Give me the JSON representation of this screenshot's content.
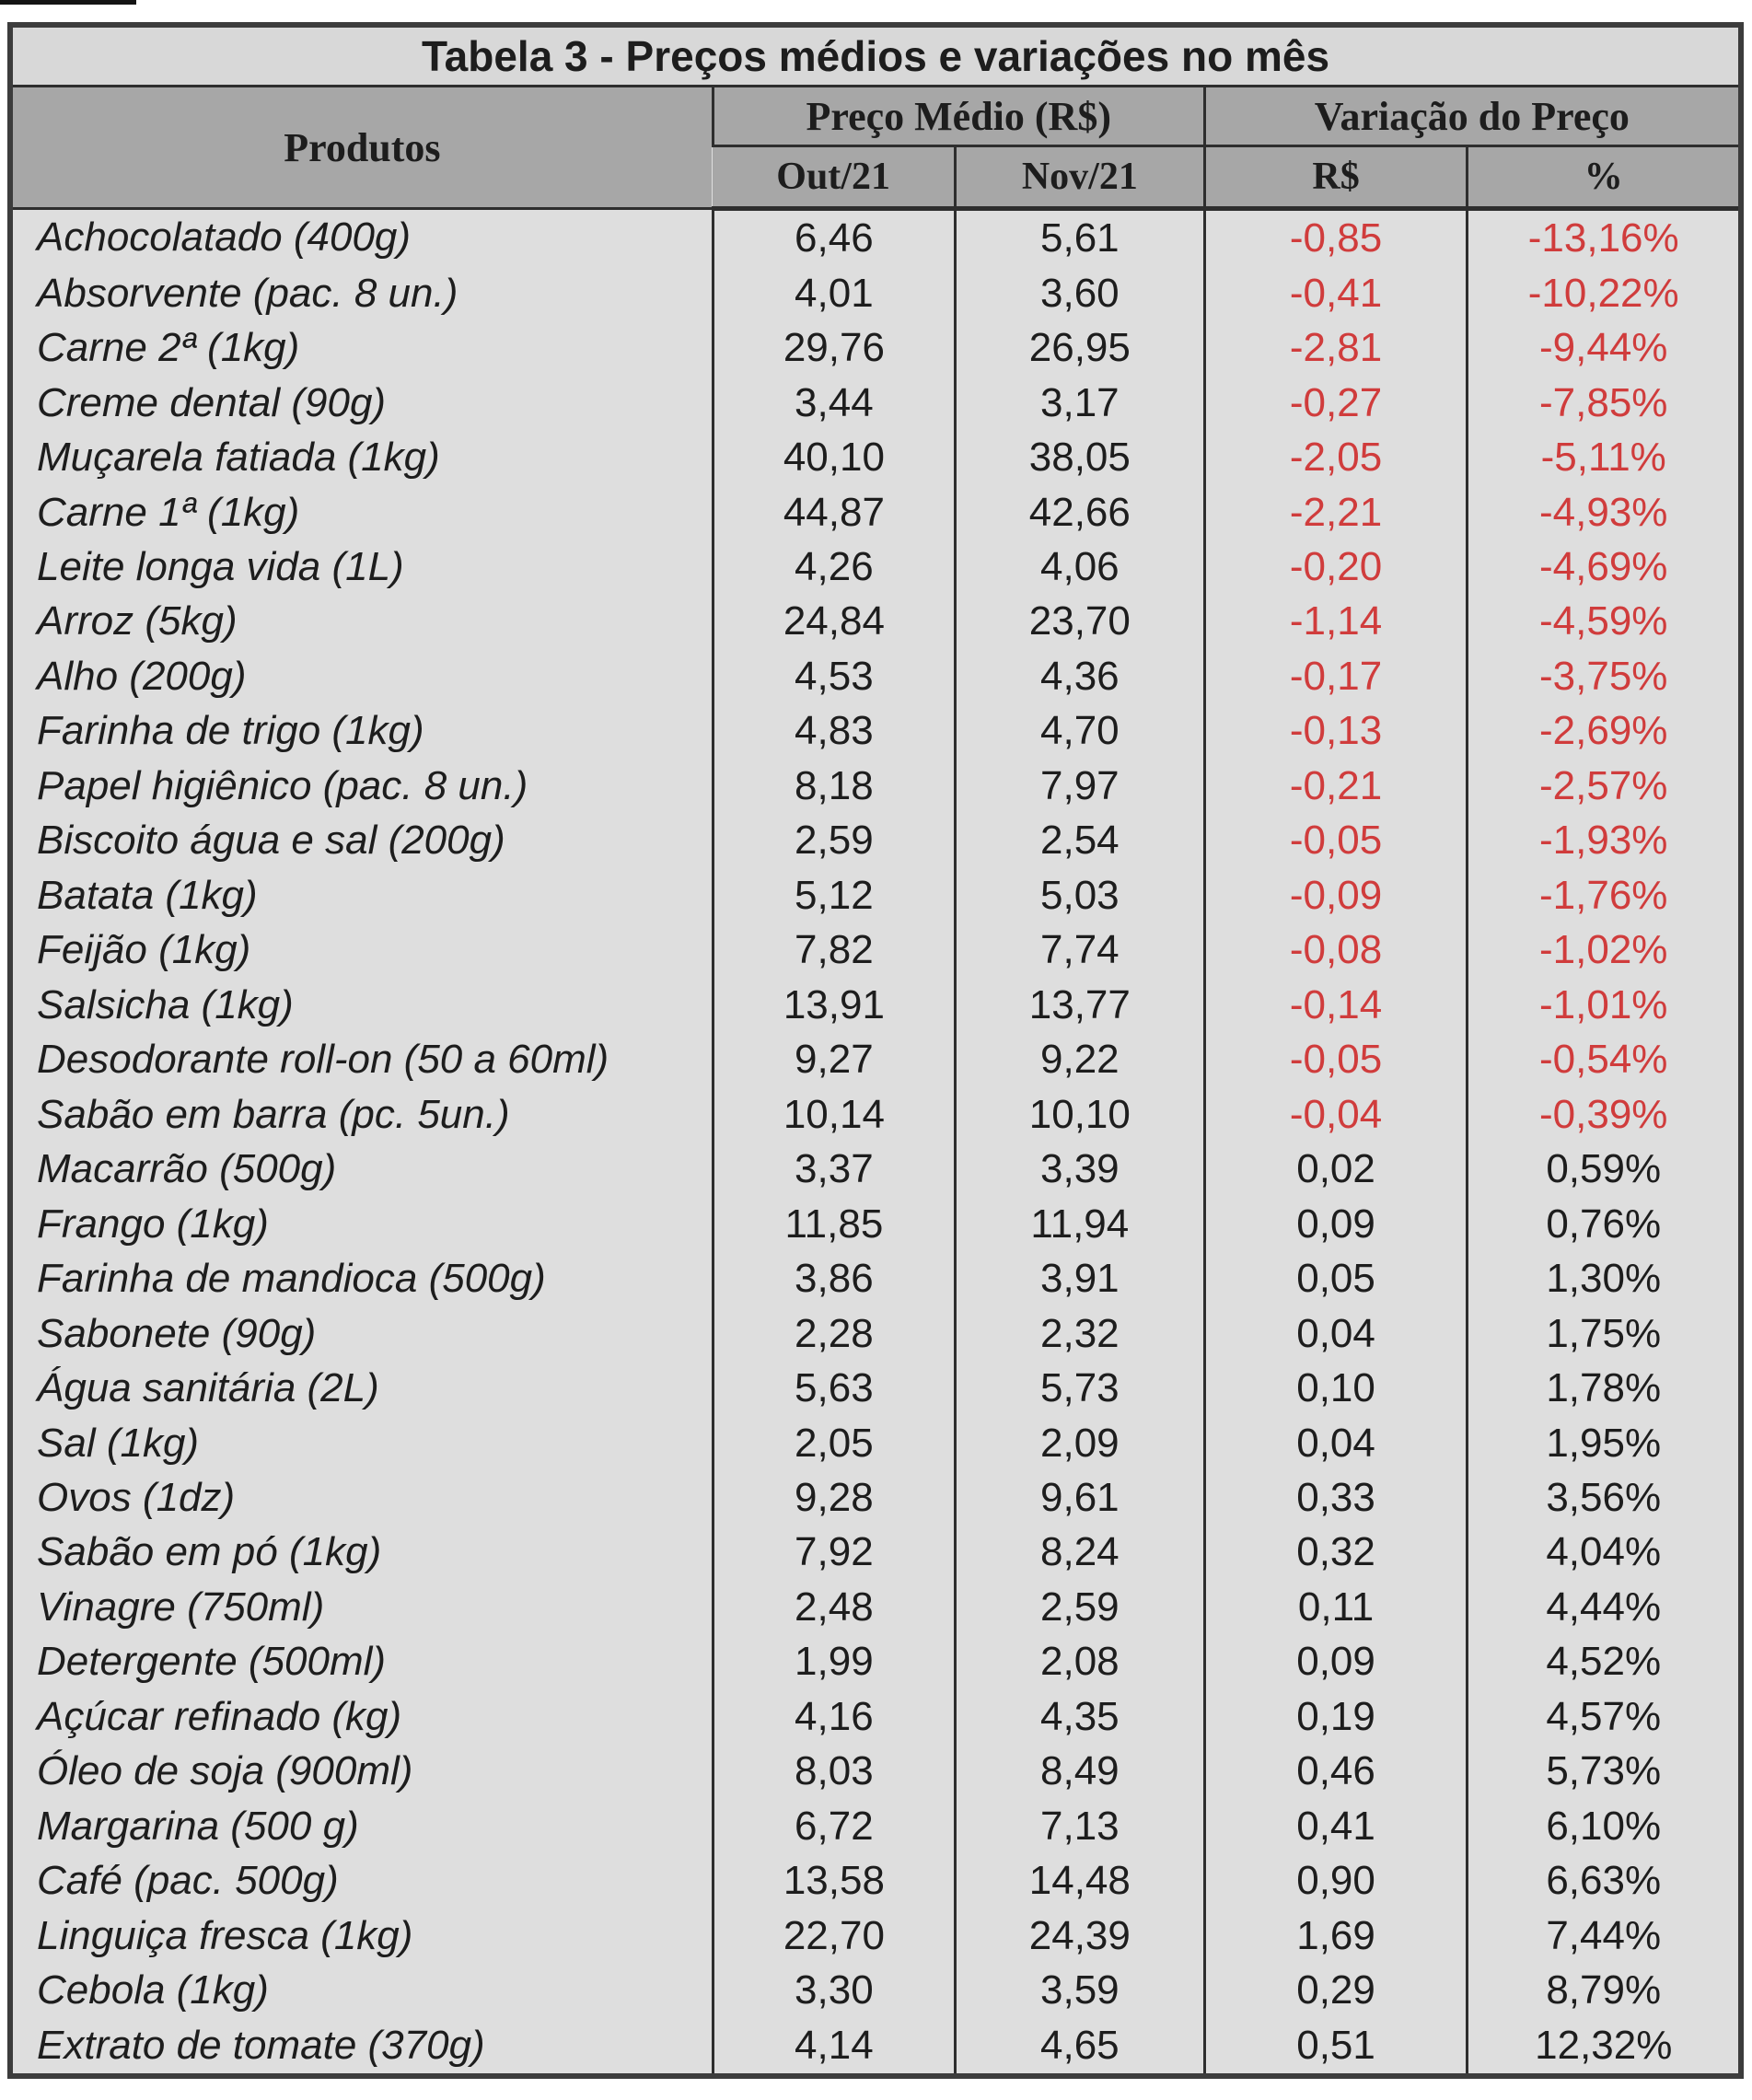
{
  "title": "Tabela 3 - Preços médios e variações no mês",
  "columns": {
    "produtos": "Produtos",
    "preco_medio": "Preço Médio (R$)",
    "variacao": "Variação do Preço",
    "out": "Out/21",
    "nov": "Nov/21",
    "rs": "R$",
    "pct": "%"
  },
  "colors": {
    "negative": "#d03c3c",
    "text": "#1d1d1d",
    "header_bg": "#a7a7a7",
    "title_bg": "#d8d8d8",
    "body_bg": "#dedede",
    "border": "#2e2e2e",
    "outer_border": "#3c3c3c"
  },
  "rows": [
    {
      "product": "Achocolatado (400g)",
      "out": "6,46",
      "nov": "5,61",
      "var_rs": "-0,85",
      "var_pct": "-13,16%"
    },
    {
      "product": "Absorvente (pac. 8 un.)",
      "out": "4,01",
      "nov": "3,60",
      "var_rs": "-0,41",
      "var_pct": "-10,22%"
    },
    {
      "product": "Carne 2ª (1kg)",
      "out": "29,76",
      "nov": "26,95",
      "var_rs": "-2,81",
      "var_pct": "-9,44%"
    },
    {
      "product": "Creme dental (90g)",
      "out": "3,44",
      "nov": "3,17",
      "var_rs": "-0,27",
      "var_pct": "-7,85%"
    },
    {
      "product": "Muçarela fatiada (1kg)",
      "out": "40,10",
      "nov": "38,05",
      "var_rs": "-2,05",
      "var_pct": "-5,11%"
    },
    {
      "product": "Carne 1ª (1kg)",
      "out": "44,87",
      "nov": "42,66",
      "var_rs": "-2,21",
      "var_pct": "-4,93%"
    },
    {
      "product": "Leite longa vida (1L)",
      "out": "4,26",
      "nov": "4,06",
      "var_rs": "-0,20",
      "var_pct": "-4,69%"
    },
    {
      "product": "Arroz (5kg)",
      "out": "24,84",
      "nov": "23,70",
      "var_rs": "-1,14",
      "var_pct": "-4,59%"
    },
    {
      "product": "Alho (200g)",
      "out": "4,53",
      "nov": "4,36",
      "var_rs": "-0,17",
      "var_pct": "-3,75%"
    },
    {
      "product": "Farinha de trigo (1kg)",
      "out": "4,83",
      "nov": "4,70",
      "var_rs": "-0,13",
      "var_pct": "-2,69%"
    },
    {
      "product": "Papel higiênico (pac. 8 un.)",
      "out": "8,18",
      "nov": "7,97",
      "var_rs": "-0,21",
      "var_pct": "-2,57%"
    },
    {
      "product": "Biscoito água e sal (200g)",
      "out": "2,59",
      "nov": "2,54",
      "var_rs": "-0,05",
      "var_pct": "-1,93%"
    },
    {
      "product": "Batata (1kg)",
      "out": "5,12",
      "nov": "5,03",
      "var_rs": "-0,09",
      "var_pct": "-1,76%"
    },
    {
      "product": "Feijão (1kg)",
      "out": "7,82",
      "nov": "7,74",
      "var_rs": "-0,08",
      "var_pct": "-1,02%"
    },
    {
      "product": "Salsicha (1kg)",
      "out": "13,91",
      "nov": "13,77",
      "var_rs": "-0,14",
      "var_pct": "-1,01%"
    },
    {
      "product": "Desodorante roll-on (50 a 60ml)",
      "out": "9,27",
      "nov": "9,22",
      "var_rs": "-0,05",
      "var_pct": "-0,54%"
    },
    {
      "product": "Sabão em barra (pc. 5un.)",
      "out": "10,14",
      "nov": "10,10",
      "var_rs": "-0,04",
      "var_pct": "-0,39%"
    },
    {
      "product": "Macarrão (500g)",
      "out": "3,37",
      "nov": "3,39",
      "var_rs": "0,02",
      "var_pct": "0,59%"
    },
    {
      "product": "Frango (1kg)",
      "out": "11,85",
      "nov": "11,94",
      "var_rs": "0,09",
      "var_pct": "0,76%"
    },
    {
      "product": "Farinha de mandioca (500g)",
      "out": "3,86",
      "nov": "3,91",
      "var_rs": "0,05",
      "var_pct": "1,30%"
    },
    {
      "product": "Sabonete (90g)",
      "out": "2,28",
      "nov": "2,32",
      "var_rs": "0,04",
      "var_pct": "1,75%"
    },
    {
      "product": "Água sanitária (2L)",
      "out": "5,63",
      "nov": "5,73",
      "var_rs": "0,10",
      "var_pct": "1,78%"
    },
    {
      "product": "Sal (1kg)",
      "out": "2,05",
      "nov": "2,09",
      "var_rs": "0,04",
      "var_pct": "1,95%"
    },
    {
      "product": "Ovos (1dz)",
      "out": "9,28",
      "nov": "9,61",
      "var_rs": "0,33",
      "var_pct": "3,56%"
    },
    {
      "product": "Sabão em pó (1kg)",
      "out": "7,92",
      "nov": "8,24",
      "var_rs": "0,32",
      "var_pct": "4,04%"
    },
    {
      "product": "Vinagre (750ml)",
      "out": "2,48",
      "nov": "2,59",
      "var_rs": "0,11",
      "var_pct": "4,44%"
    },
    {
      "product": "Detergente (500ml)",
      "out": "1,99",
      "nov": "2,08",
      "var_rs": "0,09",
      "var_pct": "4,52%"
    },
    {
      "product": "Açúcar refinado (kg)",
      "out": "4,16",
      "nov": "4,35",
      "var_rs": "0,19",
      "var_pct": "4,57%"
    },
    {
      "product": "Óleo de soja (900ml)",
      "out": "8,03",
      "nov": "8,49",
      "var_rs": "0,46",
      "var_pct": "5,73%"
    },
    {
      "product": "Margarina (500 g)",
      "out": "6,72",
      "nov": "7,13",
      "var_rs": "0,41",
      "var_pct": "6,10%"
    },
    {
      "product": "Café (pac. 500g)",
      "out": "13,58",
      "nov": "14,48",
      "var_rs": "0,90",
      "var_pct": "6,63%"
    },
    {
      "product": "Linguiça fresca (1kg)",
      "out": "22,70",
      "nov": "24,39",
      "var_rs": "1,69",
      "var_pct": "7,44%"
    },
    {
      "product": "Cebola (1kg)",
      "out": "3,30",
      "nov": "3,59",
      "var_rs": "0,29",
      "var_pct": "8,79%"
    },
    {
      "product": "Extrato de tomate (370g)",
      "out": "4,14",
      "nov": "4,65",
      "var_rs": "0,51",
      "var_pct": "12,32%"
    }
  ]
}
